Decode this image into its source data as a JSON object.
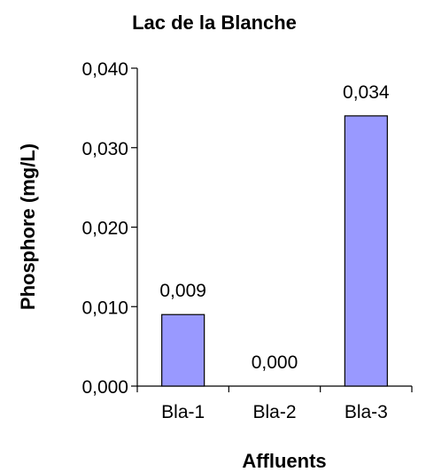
{
  "chart_data": {
    "type": "bar",
    "title": "Lac de la Blanche",
    "xlabel": "Affluents",
    "ylabel": "Phosphore (mg/L)",
    "categories": [
      "Bla-1",
      "Bla-2",
      "Bla-3"
    ],
    "values": [
      0.009,
      0.0,
      0.034
    ],
    "data_labels": [
      "0,009",
      "0,000",
      "0,034"
    ],
    "ylim": [
      0,
      0.04
    ],
    "yticks": [
      0,
      0.01,
      0.02,
      0.03,
      0.04
    ],
    "ytick_labels": [
      "0,000",
      "0,010",
      "0,020",
      "0,030",
      "0,040"
    ],
    "grid": false,
    "legend": "none",
    "bar_color": "#9999ff",
    "bar_edge_color": "#000000"
  }
}
